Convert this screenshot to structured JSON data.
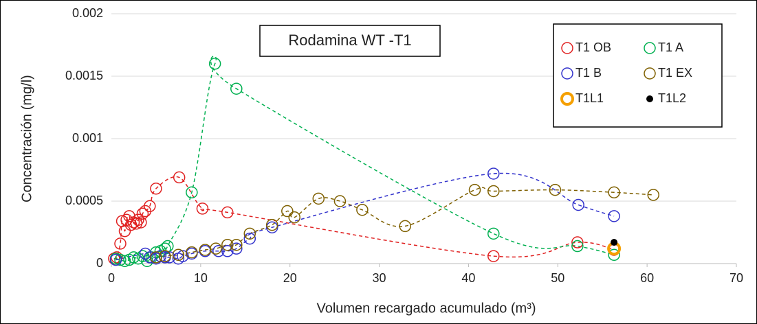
{
  "chart_data": {
    "type": "scatter",
    "title": "Rodamina WT -T1",
    "xlabel": "Volumen recargado acumulado (m³)",
    "ylabel": "Concentración (mg/l)",
    "xlim": [
      0,
      70
    ],
    "xticks": [
      0,
      10,
      20,
      30,
      40,
      50,
      60,
      70
    ],
    "ylim": [
      0,
      0.002
    ],
    "yticks": [
      0,
      0.0005,
      0.001,
      0.0015,
      0.002
    ],
    "grid": true,
    "legend": "upper right",
    "series": [
      {
        "name": "T1 OB",
        "color": "#e02020",
        "marker": "open",
        "line": "dashed",
        "x": [
          0.3,
          0.6,
          1,
          1.2,
          1.5,
          1.7,
          2,
          2.2,
          2.5,
          2.8,
          3,
          3.3,
          3.5,
          3.8,
          4.3,
          5,
          7.6,
          10.2,
          13,
          42.8,
          52.2,
          56.3
        ],
        "values": [
          4e-05,
          5e-05,
          0.00016,
          0.00034,
          0.00026,
          0.00035,
          0.00038,
          0.00031,
          0.00033,
          0.00032,
          0.00035,
          0.00033,
          0.0004,
          0.00042,
          0.00046,
          0.0006,
          0.00069,
          0.00044,
          0.00041,
          6e-05,
          0.00017,
          0.00011
        ]
      },
      {
        "name": "T1 A",
        "color": "#00b050",
        "marker": "open",
        "line": "dashed",
        "x": [
          0.5,
          1,
          1.5,
          2,
          2.5,
          3,
          3.5,
          4,
          4.5,
          5,
          5.5,
          6,
          6.3,
          9,
          11.6,
          14,
          42.8,
          52.2,
          56.3
        ],
        "values": [
          4e-05,
          3e-05,
          2e-05,
          3e-05,
          5e-05,
          4e-05,
          6e-05,
          2e-05,
          5e-05,
          9e-05,
          0.0001,
          0.00012,
          0.00014,
          0.00057,
          0.0016,
          0.0014,
          0.00024,
          0.00014,
          7e-05
        ]
      },
      {
        "name": "T1 B",
        "color": "#3333cc",
        "marker": "open",
        "line": "dashed",
        "x": [
          0.5,
          3.8,
          4.3,
          5,
          5.5,
          6,
          6.5,
          7.5,
          8,
          9,
          10.5,
          12,
          13,
          14,
          15.5,
          18,
          42.8,
          52.3,
          56.3
        ],
        "values": [
          3e-05,
          8e-05,
          5e-05,
          4e-05,
          6e-05,
          5e-05,
          5e-05,
          4e-05,
          6e-05,
          8e-05,
          0.0001,
          0.0001,
          0.0001,
          0.00012,
          0.0002,
          0.00029,
          0.00072,
          0.00047,
          0.00038
        ]
      },
      {
        "name": "T1 EX",
        "color": "#7f6000",
        "marker": "open",
        "line": "dashed",
        "x": [
          5,
          6,
          7.5,
          9,
          10.5,
          11.7,
          13,
          14,
          15.5,
          18,
          19.7,
          20.5,
          23.2,
          25.6,
          28.1,
          32.9,
          40.7,
          42.8,
          49.7,
          56.3,
          60.7
        ],
        "values": [
          5e-05,
          6e-05,
          7e-05,
          9e-05,
          0.00011,
          0.00012,
          0.00015,
          0.00015,
          0.00024,
          0.00031,
          0.00042,
          0.00037,
          0.00052,
          0.0005,
          0.00043,
          0.0003,
          0.00059,
          0.00058,
          0.00059,
          0.00057,
          0.00055
        ]
      },
      {
        "name": "T1L1",
        "color": "#f5a000",
        "marker": "thick",
        "line": "none",
        "x": [
          56.3
        ],
        "values": [
          0.00012
        ]
      },
      {
        "name": "T1L2",
        "color": "#000000",
        "marker": "filled",
        "line": "none",
        "x": [
          56.3
        ],
        "values": [
          0.00017
        ]
      }
    ]
  }
}
